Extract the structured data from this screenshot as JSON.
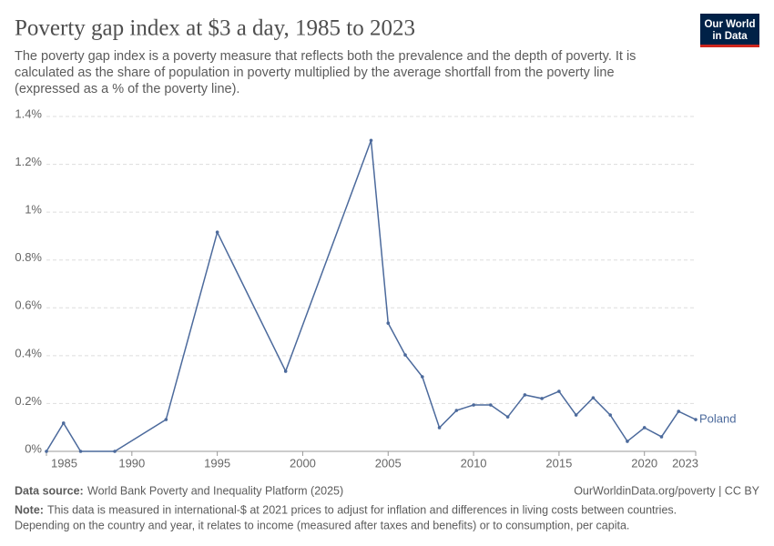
{
  "chart_data": {
    "type": "line",
    "title": "Poverty gap index at $3 a day, 1985 to 2023",
    "subtitle": [
      "The poverty gap index is a poverty measure that reflects both the prevalence and the depth of poverty. It is",
      "calculated as the share of population in poverty multiplied by the average shortfall from the poverty line",
      "(expressed as a % of the poverty line)."
    ],
    "x": [
      1985,
      1986,
      1987,
      1989,
      1992,
      1995,
      1999,
      2004,
      2005,
      2006,
      2007,
      2008,
      2009,
      2010,
      2011,
      2012,
      2013,
      2014,
      2015,
      2016,
      2017,
      2018,
      2019,
      2020,
      2021,
      2022,
      2023
    ],
    "series": [
      {
        "name": "Poland",
        "color": "#4c6a9c",
        "values": [
          0,
          0.118,
          0,
          0,
          0.133,
          0.916,
          0.335,
          1.3,
          0.536,
          0.403,
          0.312,
          0.099,
          0.171,
          0.194,
          0.194,
          0.144,
          0.236,
          0.221,
          0.251,
          0.152,
          0.224,
          0.152,
          0.042,
          0.099,
          0.061,
          0.167,
          0.133
        ]
      }
    ],
    "xlim": [
      1985,
      2023
    ],
    "xticks": [
      1985,
      1990,
      1995,
      2000,
      2005,
      2010,
      2015,
      2020,
      2023
    ],
    "ylim": [
      0,
      1.4
    ],
    "yticks": [
      {
        "value": 0,
        "label": "0%"
      },
      {
        "value": 0.2,
        "label": "0.2%"
      },
      {
        "value": 0.4,
        "label": "0.4%"
      },
      {
        "value": 0.6,
        "label": "0.6%"
      },
      {
        "value": 0.8,
        "label": "0.8%"
      },
      {
        "value": 1,
        "label": "1%"
      },
      {
        "value": 1.2,
        "label": "1.2%"
      },
      {
        "value": 1.4,
        "label": "1.4%"
      }
    ],
    "grid": true
  },
  "logo": [
    "Our World",
    "in Data"
  ],
  "footer": {
    "source_label": "Data source:",
    "source": "World Bank Poverty and Inequality Platform (2025)",
    "url": "OurWorldinData.org/poverty | CC BY",
    "note_label": "Note:",
    "note": [
      "This data is measured in international-$ at 2021 prices to adjust for inflation and differences in living costs between countries.",
      "Depending on the country and year, it relates to income (measured after taxes and benefits) or to consumption, per capita."
    ]
  }
}
